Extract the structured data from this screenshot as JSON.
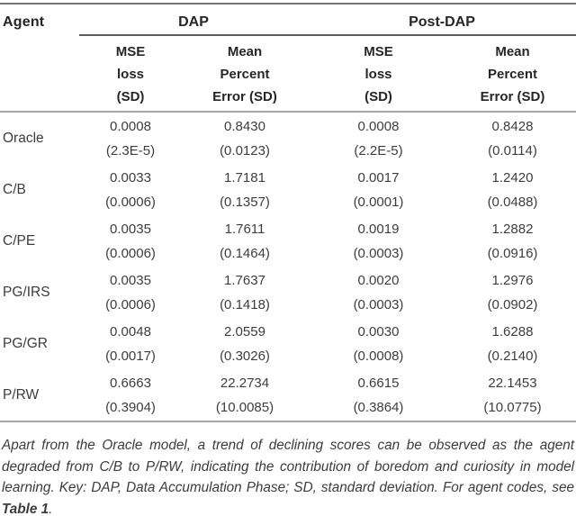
{
  "table": {
    "agent_header": "Agent",
    "groups": [
      {
        "label": "DAP"
      },
      {
        "label": "Post-DAP"
      }
    ],
    "sub_mse": [
      "MSE",
      "loss",
      "(SD)"
    ],
    "sub_mpe": [
      "Mean",
      "Percent",
      "Error (SD)"
    ],
    "rows": [
      {
        "agent": "Oracle",
        "dap_mse": "0.0008",
        "dap_mse_sd": "(2.3E-5)",
        "dap_mpe": "0.8430",
        "dap_mpe_sd": "(0.0123)",
        "post_mse": "0.0008",
        "post_mse_sd": "(2.2E-5)",
        "post_mpe": "0.8428",
        "post_mpe_sd": "(0.0114)"
      },
      {
        "agent": "C/B",
        "dap_mse": "0.0033",
        "dap_mse_sd": "(0.0006)",
        "dap_mpe": "1.7181",
        "dap_mpe_sd": "(0.1357)",
        "post_mse": "0.0017",
        "post_mse_sd": "(0.0001)",
        "post_mpe": "1.2420",
        "post_mpe_sd": "(0.0488)"
      },
      {
        "agent": "C/PE",
        "dap_mse": "0.0035",
        "dap_mse_sd": "(0.0006)",
        "dap_mpe": "1.7611",
        "dap_mpe_sd": "(0.1464)",
        "post_mse": "0.0019",
        "post_mse_sd": "(0.0003)",
        "post_mpe": "1.2882",
        "post_mpe_sd": "(0.0916)"
      },
      {
        "agent": "PG/IRS",
        "dap_mse": "0.0035",
        "dap_mse_sd": "(0.0006)",
        "dap_mpe": "1.7637",
        "dap_mpe_sd": "(0.1418)",
        "post_mse": "0.0020",
        "post_mse_sd": "(0.0003)",
        "post_mpe": "1.2976",
        "post_mpe_sd": "(0.0902)"
      },
      {
        "agent": "PG/GR",
        "dap_mse": "0.0048",
        "dap_mse_sd": "(0.0017)",
        "dap_mpe": "2.0559",
        "dap_mpe_sd": "(0.3026)",
        "post_mse": "0.0030",
        "post_mse_sd": "(0.0008)",
        "post_mpe": "1.6288",
        "post_mpe_sd": "(0.2140)"
      },
      {
        "agent": "P/RW",
        "dap_mse": "0.6663",
        "dap_mse_sd": "(0.3904)",
        "dap_mpe": "22.2734",
        "dap_mpe_sd": "(10.0085)",
        "post_mse": "0.6615",
        "post_mse_sd": "(0.3864)",
        "post_mpe": "22.1453",
        "post_mpe_sd": "(10.0775)"
      }
    ]
  },
  "caption": {
    "text": "Apart from the Oracle model, a trend of declining scores can be observed as the agent degraded from C/B to P/RW, indicating the contribution of boredom and curiosity in model learning. Key: DAP, Data Accumulation Phase; SD, standard deviation. For agent codes, see ",
    "reference": "Table 1",
    "period": "."
  }
}
